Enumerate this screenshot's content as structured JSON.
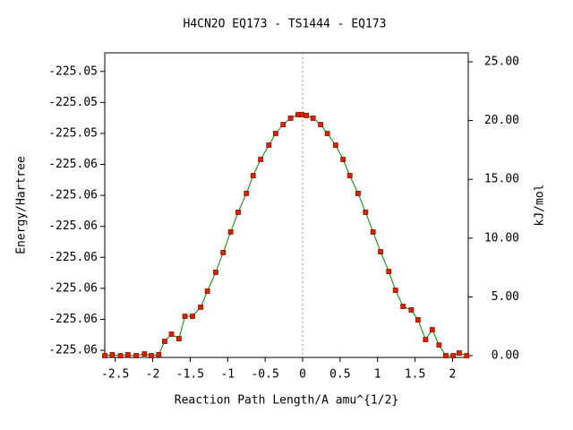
{
  "chart_data": {
    "type": "line",
    "title": "H4CN2O   EQ173 - TS1444 - EQ173",
    "xlabel": "Reaction Path Length/A amu^{1/2}",
    "ylabel": "Energy/Hartree",
    "y2label": "kJ/mol",
    "xlim": [
      -2.64,
      2.21
    ],
    "xticks": [
      -2.5,
      -2,
      -1.5,
      -1,
      -0.5,
      0,
      0.5,
      1,
      1.5,
      2
    ],
    "ylim": [
      -225.06173,
      -225.0519
    ],
    "yticks": [
      {
        "value": -225.0615,
        "label": "-225.06"
      },
      {
        "value": -225.0605,
        "label": "-225.06"
      },
      {
        "value": -225.0595,
        "label": "-225.06"
      },
      {
        "value": -225.0585,
        "label": "-225.06"
      },
      {
        "value": -225.0575,
        "label": "-225.06"
      },
      {
        "value": -225.0565,
        "label": "-225.06"
      },
      {
        "value": -225.0555,
        "label": "-225.06"
      },
      {
        "value": -225.0545,
        "label": "-225.05"
      },
      {
        "value": -225.0535,
        "label": "-225.05"
      },
      {
        "value": -225.0525,
        "label": "-225.05"
      }
    ],
    "y2lim": [
      -0.15,
      25.76
    ],
    "y2ticks": [
      {
        "value": 0,
        "label": "0.00"
      },
      {
        "value": 5,
        "label": "5.00"
      },
      {
        "value": 10,
        "label": "10.00"
      },
      {
        "value": 15,
        "label": "15.00"
      },
      {
        "value": 20,
        "label": "20.00"
      },
      {
        "value": 25,
        "label": "25.00"
      }
    ],
    "vline": {
      "x": 0,
      "color": "#999999"
    },
    "series": [
      {
        "axis": "y2",
        "color": "#008800",
        "marker_color": "#dd2200",
        "x": [
          -2.64,
          -2.54,
          -2.43,
          -2.33,
          -2.22,
          -2.11,
          -2.02,
          -1.92,
          -1.84,
          -1.75,
          -1.65,
          -1.57,
          -1.47,
          -1.36,
          -1.27,
          -1.16,
          -1.06,
          -0.96,
          -0.86,
          -0.75,
          -0.66,
          -0.56,
          -0.45,
          -0.36,
          -0.26,
          -0.16,
          -0.06,
          -0.01,
          0.05,
          0.14,
          0.24,
          0.33,
          0.44,
          0.54,
          0.63,
          0.74,
          0.84,
          0.94,
          1.04,
          1.15,
          1.24,
          1.34,
          1.45,
          1.54,
          1.64,
          1.73,
          1.82,
          1.91,
          2.01,
          2.09,
          2.19
        ],
        "values": [
          0,
          0.08,
          0,
          0.08,
          0,
          0.15,
          0,
          0.08,
          1.22,
          1.83,
          1.45,
          3.35,
          3.35,
          4.12,
          5.49,
          7.09,
          8.77,
          10.52,
          12.2,
          13.8,
          15.32,
          16.69,
          17.91,
          18.9,
          19.66,
          20.2,
          20.5,
          20.5,
          20.43,
          20.2,
          19.66,
          18.9,
          17.91,
          16.69,
          15.32,
          13.8,
          12.2,
          10.52,
          8.84,
          7.16,
          5.56,
          4.19,
          3.89,
          3.05,
          1.37,
          2.21,
          0.91,
          0,
          0,
          0.23,
          0
        ]
      }
    ]
  }
}
